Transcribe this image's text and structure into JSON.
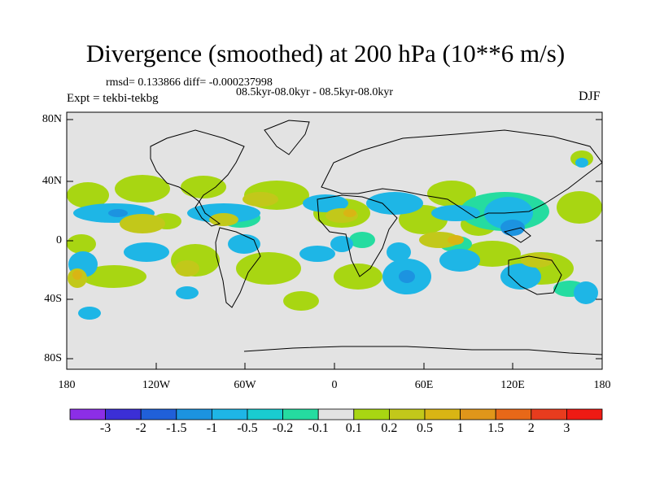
{
  "title": "Divergence (smoothed) at 200 hPa (10**6 m/s)",
  "stats": "rmsd= 0.133866 diff= -0.000237998",
  "subtitle": "08.5kyr-08.0kyr - 08.5kyr-08.0kyr",
  "experiment": "Expt = tekbi-tekbg",
  "season": "DJF",
  "lat_labels": [
    "80N",
    "40N",
    "0",
    "40S",
    "80S"
  ],
  "lon_labels": [
    "180",
    "120W",
    "60W",
    "0",
    "60E",
    "120E",
    "180"
  ],
  "colorbar": {
    "labels": [
      "-3",
      "-2",
      "-1.5",
      "-1",
      "-0.5",
      "-0.2",
      "-0.1",
      "0.1",
      "0.2",
      "0.5",
      "1",
      "1.5",
      "2",
      "3"
    ],
    "colors": [
      "#8c2ee6",
      "#3b2fd6",
      "#2060d9",
      "#1c93e0",
      "#1eb6e6",
      "#19ccd0",
      "#25dca0",
      "#e3e3e3",
      "#a8d612",
      "#c2c81a",
      "#d9b514",
      "#e0961a",
      "#e86818",
      "#e83c1e",
      "#ee1a14"
    ]
  },
  "colors": {
    "ocean_bg": "#e3e3e3",
    "coast": "#000000"
  }
}
